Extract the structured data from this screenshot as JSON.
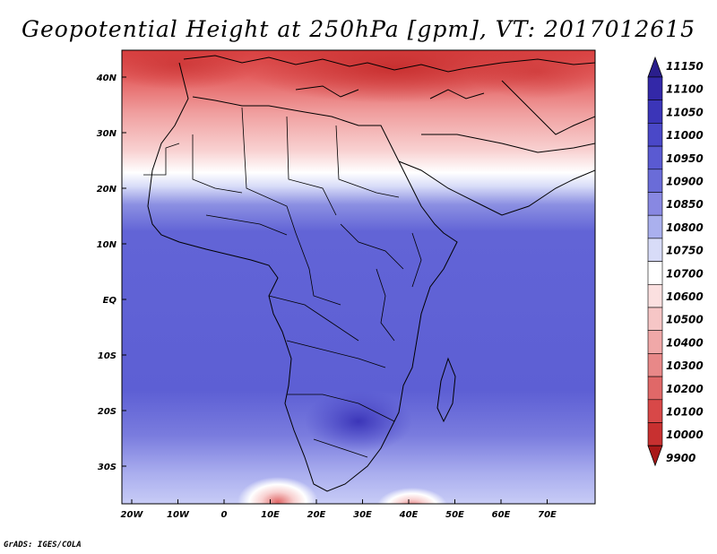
{
  "title": "Geopotential Height at 250hPa [gpm], VT: 2017012615",
  "footer": "GrADS: IGES/COLA",
  "lon_ticks": [
    "20W",
    "10W",
    "0",
    "10E",
    "20E",
    "30E",
    "40E",
    "50E",
    "60E",
    "70E"
  ],
  "lat_ticks": [
    "40N",
    "30N",
    "20N",
    "10N",
    "EQ",
    "10S",
    "20S",
    "30S"
  ],
  "colorbar": {
    "levels": [
      "11150",
      "11100",
      "11050",
      "11000",
      "10950",
      "10900",
      "10850",
      "10800",
      "10750",
      "10700",
      "10600",
      "10500",
      "10400",
      "10300",
      "10200",
      "10100",
      "10000",
      "9900"
    ],
    "colors": [
      "#2a1e8c",
      "#3328a8",
      "#3b35b8",
      "#4a48c8",
      "#5a5ad2",
      "#6a6cd8",
      "#8888e2",
      "#aab0ee",
      "#d8dcf8",
      "#ffffff",
      "#fbe0e0",
      "#f6c6c6",
      "#f0a8a8",
      "#e88888",
      "#e06868",
      "#d84848",
      "#c83030",
      "#a81818"
    ]
  },
  "map_regions": {
    "ocean_color": "#5d5fd4",
    "north_band_color": "#e05050",
    "subtropical_white": "#fdf3f3"
  }
}
